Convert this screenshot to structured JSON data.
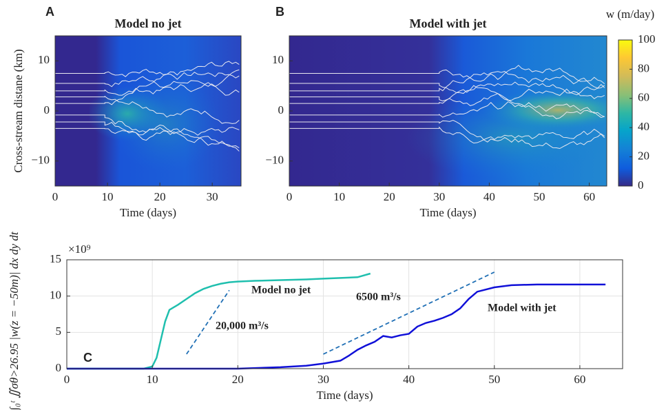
{
  "chart_data": [
    {
      "type": "heatmap",
      "panel_label": "A",
      "title": "Model no jet",
      "xlabel": "Time (days)",
      "ylabel": "Cross-stream distane (km)",
      "xlim": [
        0,
        35.5
      ],
      "xticks": [
        0,
        10,
        20,
        30
      ],
      "ylim": [
        -15,
        15
      ],
      "yticks": [
        {
          "value": -10,
          "label": "−10"
        },
        0,
        10
      ]
    },
    {
      "type": "heatmap",
      "panel_label": "B",
      "title": "Model with jet",
      "xlabel": "Time (days)",
      "xlim": [
        0,
        63.5
      ],
      "xticks": [
        0,
        10,
        20,
        30,
        40,
        50,
        60
      ],
      "ylim": [
        -15,
        15
      ],
      "yticks": [
        {
          "value": -10,
          "label": "−10"
        },
        0,
        10
      ],
      "colorbar": {
        "label": "w (m/day)",
        "lim": [
          0,
          100
        ],
        "ticks": [
          0,
          20,
          40,
          60,
          80,
          100
        ]
      }
    },
    {
      "type": "line",
      "panel_label": "C",
      "xlabel": "Time (days)",
      "ylabel": "∫₀ᵗ ∬σθ>26.95 |w(z = −50m)| dx dy dt",
      "multiplier": "×10⁹",
      "xlim": [
        0,
        65
      ],
      "xticks": [
        0,
        10,
        20,
        30,
        40,
        50,
        60
      ],
      "ylim": [
        0,
        15
      ],
      "yticks": [
        0,
        5,
        10,
        15
      ],
      "grid": true,
      "series": [
        {
          "name": "Model no jet",
          "color": "#1fbfae",
          "x": [
            0,
            9,
            10,
            10.5,
            11,
            11.5,
            12,
            13,
            14,
            15,
            16,
            17,
            18,
            19,
            20,
            22,
            25,
            28,
            30,
            32,
            34,
            35.5
          ],
          "values": [
            0,
            0,
            0.3,
            1.5,
            4,
            6.5,
            8.1,
            8.8,
            9.6,
            10.4,
            11,
            11.4,
            11.7,
            11.9,
            12,
            12.1,
            12.2,
            12.3,
            12.4,
            12.5,
            12.6,
            13.1
          ]
        },
        {
          "name": "Model with jet",
          "color": "#1010d8",
          "x": [
            0,
            20,
            25,
            28,
            30,
            32,
            33,
            34,
            35,
            36,
            37,
            38,
            39,
            40,
            41,
            42,
            43,
            44,
            45,
            46,
            47,
            48,
            50,
            52,
            55,
            58,
            60,
            63
          ],
          "values": [
            0,
            0,
            0.2,
            0.4,
            0.7,
            1.1,
            1.8,
            2.6,
            3.2,
            3.7,
            4.5,
            4.3,
            4.6,
            4.8,
            5.8,
            6.3,
            6.6,
            7,
            7.5,
            8.3,
            9.6,
            10.6,
            11.2,
            11.5,
            11.6,
            11.6,
            11.6,
            11.6
          ]
        }
      ],
      "reference_lines": [
        {
          "x": [
            14,
            19
          ],
          "y": [
            2,
            10.8
          ],
          "color": "#1f6fb5"
        },
        {
          "x": [
            30,
            50
          ],
          "y": [
            2,
            13.3
          ],
          "color": "#1f6fb5"
        }
      ],
      "annotations": [
        "20,000 m³/s",
        "6500 m³/s"
      ]
    }
  ]
}
